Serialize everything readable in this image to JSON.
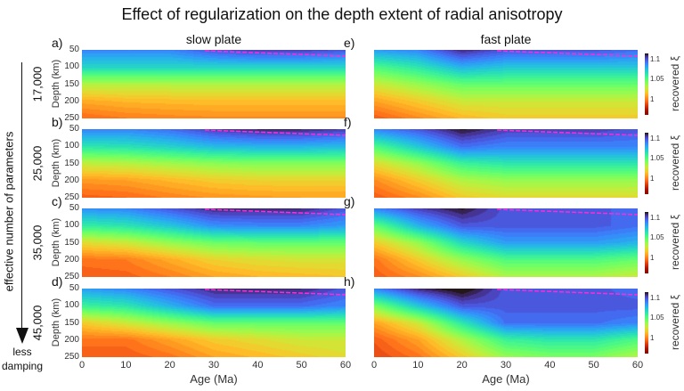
{
  "title": "Effect of regularization on the depth extent of radial anisotropy",
  "columns": [
    "slow plate",
    "fast plate"
  ],
  "row_axis_label": "effective number of parameters",
  "row_labels": [
    "17,000",
    "25,000",
    "35,000",
    "45,000"
  ],
  "arrow_label_line1": "less",
  "arrow_label_line2": "damping",
  "chart_data": {
    "type": "heatmap",
    "colormap": "turbo (reversed)",
    "x": [
      0,
      10,
      20,
      30,
      40,
      50,
      60
    ],
    "y": [
      50,
      100,
      150,
      200,
      250
    ],
    "xlabel": "Age (Ma)",
    "ylabel": "Depth (km)",
    "xlim": [
      0,
      60
    ],
    "ylim": [
      250,
      50
    ],
    "xticks": [
      "0",
      "10",
      "20",
      "30",
      "40",
      "50",
      "60"
    ],
    "yticks": [
      "50",
      "100",
      "150",
      "200",
      "250"
    ],
    "colorbar": {
      "label": "recovered ξ",
      "ticks": [
        "1.1",
        "1.05",
        "1"
      ],
      "range": [
        0.965,
        1.115
      ]
    },
    "reference_line": {
      "color": "#ff2bd6",
      "style": "dashed",
      "points": [
        [
          28,
          50
        ],
        [
          60,
          68
        ]
      ]
    },
    "panels": [
      {
        "label": "a)",
        "column": "slow plate",
        "row": "17,000",
        "values": [
          [
            1.09,
            1.09,
            1.09,
            1.1,
            1.105,
            1.105,
            1.1
          ],
          [
            1.07,
            1.07,
            1.07,
            1.07,
            1.07,
            1.07,
            1.07
          ],
          [
            1.035,
            1.035,
            1.035,
            1.035,
            1.035,
            1.035,
            1.035
          ],
          [
            1.012,
            1.015,
            1.016,
            1.017,
            1.017,
            1.017,
            1.017
          ],
          [
            0.998,
            1.002,
            1.004,
            1.005,
            1.005,
            1.005,
            1.005
          ]
        ]
      },
      {
        "label": "b)",
        "column": "slow plate",
        "row": "25,000",
        "values": [
          [
            1.09,
            1.09,
            1.095,
            1.105,
            1.11,
            1.11,
            1.105
          ],
          [
            1.065,
            1.067,
            1.072,
            1.078,
            1.08,
            1.08,
            1.078
          ],
          [
            1.032,
            1.034,
            1.038,
            1.042,
            1.044,
            1.044,
            1.044
          ],
          [
            1.008,
            1.01,
            1.015,
            1.02,
            1.022,
            1.022,
            1.022
          ],
          [
            0.996,
            0.998,
            1.003,
            1.007,
            1.009,
            1.01,
            1.01
          ]
        ]
      },
      {
        "label": "c)",
        "column": "slow plate",
        "row": "35,000",
        "values": [
          [
            1.088,
            1.09,
            1.1,
            1.11,
            1.11,
            1.11,
            1.1
          ],
          [
            1.062,
            1.066,
            1.075,
            1.088,
            1.09,
            1.09,
            1.085
          ],
          [
            1.025,
            1.03,
            1.04,
            1.048,
            1.05,
            1.05,
            1.05
          ],
          [
            1.0,
            1.002,
            1.012,
            1.022,
            1.026,
            1.028,
            1.028
          ],
          [
            0.995,
            0.996,
            1.002,
            1.01,
            1.014,
            1.016,
            1.018
          ]
        ]
      },
      {
        "label": "d)",
        "column": "slow plate",
        "row": "45,000",
        "values": [
          [
            1.085,
            1.09,
            1.1,
            1.11,
            1.11,
            1.11,
            1.1
          ],
          [
            1.06,
            1.065,
            1.08,
            1.095,
            1.095,
            1.095,
            1.09
          ],
          [
            1.02,
            1.03,
            1.04,
            1.05,
            1.05,
            1.05,
            1.05
          ],
          [
            1.0,
            1.0,
            1.01,
            1.02,
            1.025,
            1.03,
            1.03
          ],
          [
            0.995,
            0.995,
            1.0,
            1.01,
            1.015,
            1.02,
            1.025
          ]
        ]
      },
      {
        "label": "e)",
        "column": "fast plate",
        "row": "17,000",
        "values": [
          [
            1.085,
            1.09,
            1.11,
            1.1,
            1.1,
            1.1,
            1.095
          ],
          [
            1.055,
            1.065,
            1.08,
            1.075,
            1.075,
            1.075,
            1.075
          ],
          [
            1.03,
            1.04,
            1.05,
            1.05,
            1.05,
            1.05,
            1.05
          ],
          [
            1.01,
            1.02,
            1.03,
            1.03,
            1.03,
            1.03,
            1.03
          ],
          [
            0.995,
            1.005,
            1.015,
            1.02,
            1.02,
            1.02,
            1.02
          ]
        ]
      },
      {
        "label": "f)",
        "column": "fast plate",
        "row": "25,000",
        "values": [
          [
            1.09,
            1.1,
            1.115,
            1.105,
            1.105,
            1.105,
            1.1
          ],
          [
            1.055,
            1.075,
            1.095,
            1.09,
            1.09,
            1.09,
            1.09
          ],
          [
            1.025,
            1.04,
            1.06,
            1.065,
            1.065,
            1.065,
            1.065
          ],
          [
            1.005,
            1.02,
            1.035,
            1.04,
            1.04,
            1.04,
            1.04
          ],
          [
            0.995,
            1.005,
            1.02,
            1.025,
            1.025,
            1.025,
            1.025
          ]
        ]
      },
      {
        "label": "g)",
        "column": "fast plate",
        "row": "35,000",
        "values": [
          [
            1.09,
            1.105,
            1.115,
            1.1,
            1.1,
            1.1,
            1.095
          ],
          [
            1.05,
            1.08,
            1.1,
            1.1,
            1.1,
            1.1,
            1.095
          ],
          [
            1.02,
            1.04,
            1.07,
            1.085,
            1.085,
            1.085,
            1.08
          ],
          [
            1.0,
            1.02,
            1.04,
            1.055,
            1.055,
            1.055,
            1.05
          ],
          [
            0.995,
            1.005,
            1.02,
            1.035,
            1.035,
            1.035,
            1.03
          ]
        ]
      },
      {
        "label": "h)",
        "column": "fast plate",
        "row": "45,000",
        "values": [
          [
            1.09,
            1.11,
            1.12,
            1.1,
            1.1,
            1.1,
            1.095
          ],
          [
            1.045,
            1.075,
            1.1,
            1.1,
            1.1,
            1.1,
            1.1
          ],
          [
            1.01,
            1.03,
            1.065,
            1.095,
            1.095,
            1.095,
            1.09
          ],
          [
            0.995,
            1.01,
            1.035,
            1.06,
            1.065,
            1.065,
            1.055
          ],
          [
            0.99,
            1.0,
            1.02,
            1.04,
            1.045,
            1.045,
            1.035
          ]
        ]
      }
    ]
  }
}
